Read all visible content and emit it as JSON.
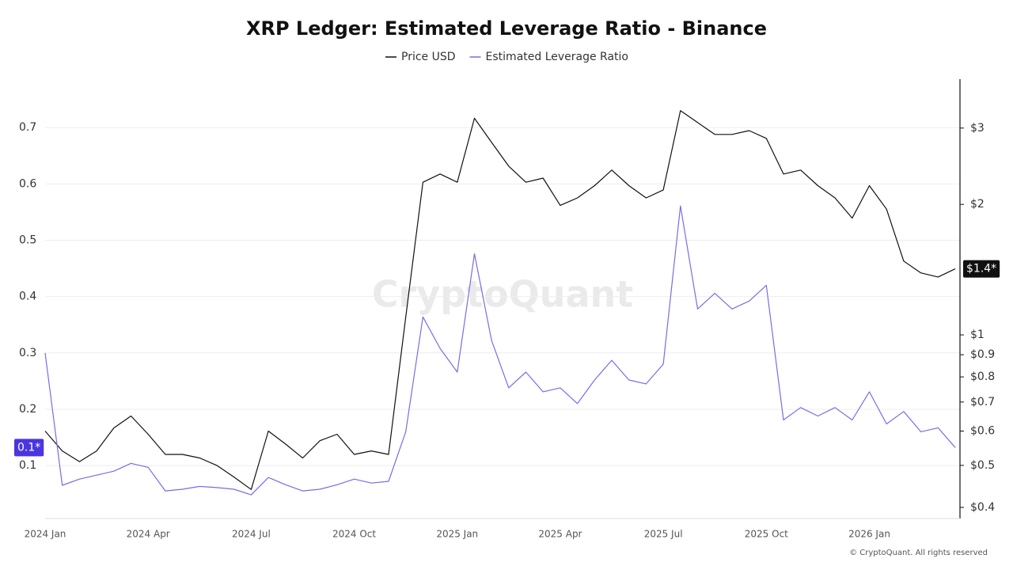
{
  "chart_data": {
    "type": "line",
    "title": "XRP Ledger: Estimated Leverage Ratio - Binance",
    "watermark": "CryptoQuant",
    "credit": "© CryptoQuant. All rights reserved",
    "categories": [
      "2024 Jan",
      null,
      null,
      null,
      null,
      null,
      "2024 Apr",
      null,
      null,
      null,
      null,
      null,
      "2024 Jul",
      null,
      null,
      null,
      null,
      null,
      "2024 Oct",
      null,
      null,
      null,
      null,
      null,
      "2025 Jan",
      null,
      null,
      null,
      null,
      null,
      "2025 Apr",
      null,
      null,
      null,
      null,
      null,
      "2025 Jul",
      null,
      null,
      null,
      null,
      null,
      "2025 Oct",
      null,
      null,
      null,
      null,
      null,
      "2026 Jan",
      null,
      null,
      null,
      null,
      null
    ],
    "series": [
      {
        "name": "Price USD",
        "color": "#111111",
        "axis": "y2",
        "values": [
          0.6,
          0.54,
          0.51,
          0.54,
          0.61,
          0.65,
          0.59,
          0.53,
          0.53,
          0.52,
          0.5,
          0.47,
          0.44,
          0.6,
          0.56,
          0.52,
          0.57,
          0.59,
          0.53,
          0.54,
          0.53,
          1.1,
          2.25,
          2.35,
          2.25,
          3.16,
          2.78,
          2.45,
          2.25,
          2.3,
          1.99,
          2.07,
          2.21,
          2.4,
          2.21,
          2.07,
          2.16,
          3.29,
          3.09,
          2.9,
          2.9,
          2.96,
          2.84,
          2.35,
          2.4,
          2.21,
          2.07,
          1.86,
          2.21,
          1.95,
          1.48,
          1.39,
          1.36,
          1.42
        ]
      },
      {
        "name": "Estimated Leverage Ratio",
        "color": "#7b6be6",
        "axis": "y",
        "values": [
          0.3,
          0.065,
          0.076,
          0.083,
          0.09,
          0.104,
          0.097,
          0.055,
          0.058,
          0.063,
          0.061,
          0.058,
          0.048,
          0.079,
          0.066,
          0.055,
          0.058,
          0.066,
          0.076,
          0.069,
          0.072,
          0.16,
          0.364,
          0.308,
          0.266,
          0.476,
          0.322,
          0.238,
          0.266,
          0.231,
          0.238,
          0.21,
          0.252,
          0.287,
          0.252,
          0.245,
          0.28,
          0.561,
          0.378,
          0.406,
          0.378,
          0.392,
          0.42,
          0.181,
          0.203,
          0.188,
          0.203,
          0.181,
          0.231,
          0.174,
          0.196,
          0.16,
          0.167,
          0.132
        ]
      }
    ],
    "ylim": [
      0.006,
      0.786
    ],
    "yticks": [
      0.1,
      0.2,
      0.3,
      0.4,
      0.5,
      0.6,
      0.7
    ],
    "y2lim": [
      0.377,
      3.89
    ],
    "y2_log": true,
    "y2ticks": [
      {
        "value": 0.4,
        "label": "$0.4"
      },
      {
        "value": 0.5,
        "label": "$0.5"
      },
      {
        "value": 0.6,
        "label": "$0.6"
      },
      {
        "value": 0.7,
        "label": "$0.7"
      },
      {
        "value": 0.8,
        "label": "$0.8"
      },
      {
        "value": 0.9,
        "label": "$0.9"
      },
      {
        "value": 1,
        "label": "$1"
      },
      {
        "value": 2,
        "label": "$2"
      },
      {
        "value": 3,
        "label": "$3"
      }
    ],
    "grid": true,
    "value_markers": [
      {
        "axis": "y",
        "value": 0.132,
        "label": "0.1*",
        "color": "#4a35e0"
      },
      {
        "axis": "y2",
        "value": 1.42,
        "label": "$1.4*",
        "color": "#111111"
      }
    ]
  }
}
